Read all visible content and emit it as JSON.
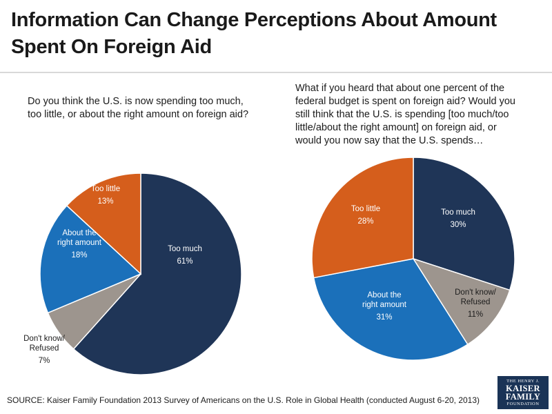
{
  "title": "Information Can Change Perceptions About Amount Spent On Foreign Aid",
  "source": "SOURCE: Kaiser Family Foundation 2013 Survey of Americans on the U.S. Role in Global Health (conducted August 6-20, 2013)",
  "logo": {
    "line1": "THE HENRY J.",
    "line2a": "KAISER",
    "line2b": "FAMILY",
    "line3": "FOUNDATION"
  },
  "colors": {
    "too_much": "#1f3557",
    "dont_know": "#9d958e",
    "about_right": "#1b70ba",
    "too_little": "#d55e1c"
  },
  "chart_data": [
    {
      "type": "pie",
      "title": "Do you think the U.S. is now spending too much, too little, or about the right amount on foreign aid?",
      "slices": [
        {
          "label": "Too much",
          "value": 61,
          "display": "61%"
        },
        {
          "label": "Don't know/ Refused",
          "value": 7,
          "display": "7%"
        },
        {
          "label": "About the right amount",
          "value": 18,
          "display": "18%"
        },
        {
          "label": "Too little",
          "value": 13,
          "display": "13%"
        }
      ]
    },
    {
      "type": "pie",
      "title": "What if you heard that about one percent of the federal budget is spent on foreign aid? Would you still think that the U.S. is spending [too much/too little/about the right amount] on foreign aid, or would you now say that the U.S. spends…",
      "slices": [
        {
          "label": "Too much",
          "value": 30,
          "display": "30%"
        },
        {
          "label": "Don't know/ Refused",
          "value": 11,
          "display": "11%"
        },
        {
          "label": "About the right amount",
          "value": 31,
          "display": "31%"
        },
        {
          "label": "Too little",
          "value": 28,
          "display": "28%"
        }
      ]
    }
  ]
}
